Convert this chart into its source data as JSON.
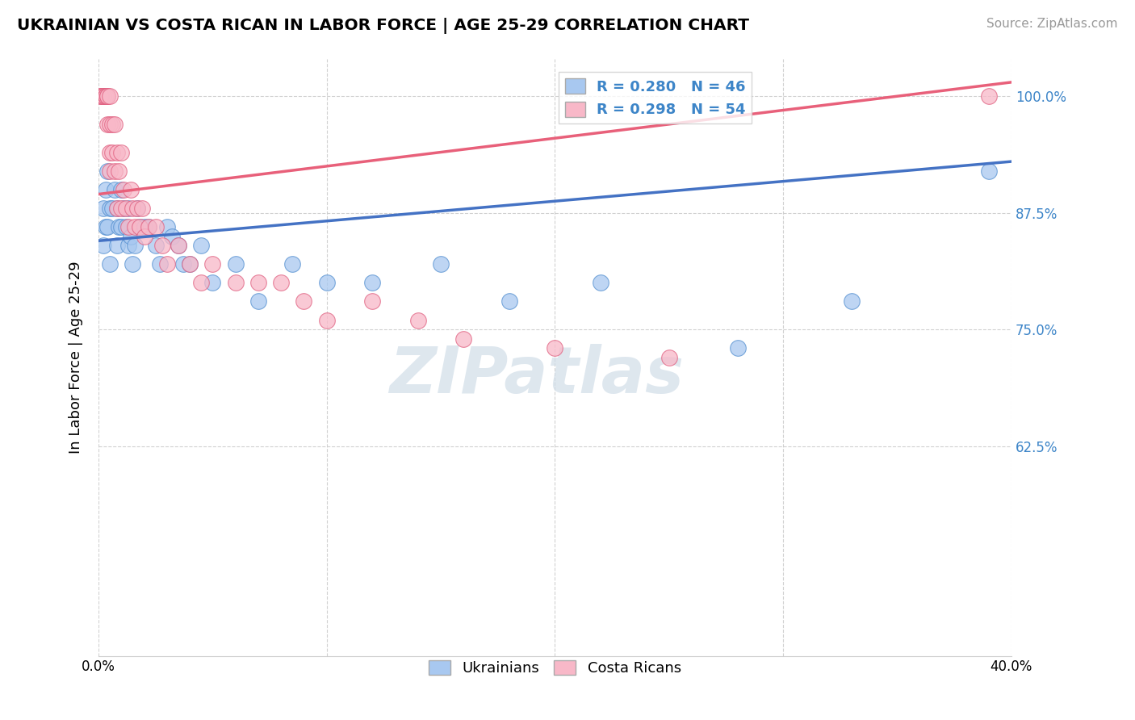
{
  "title": "UKRAINIAN VS COSTA RICAN IN LABOR FORCE | AGE 25-29 CORRELATION CHART",
  "source": "Source: ZipAtlas.com",
  "ylabel": "In Labor Force | Age 25-29",
  "xlim": [
    0.0,
    0.4
  ],
  "ylim": [
    0.4,
    1.04
  ],
  "yticks": [
    0.625,
    0.75,
    0.875,
    1.0
  ],
  "yticklabels": [
    "62.5%",
    "75.0%",
    "87.5%",
    "100.0%"
  ],
  "xtick_left_label": "0.0%",
  "xtick_right_label": "40.0%",
  "ukrainian_color": "#a8c8f0",
  "ukrainian_edge": "#5590d0",
  "costa_rican_color": "#f8b8c8",
  "costa_rican_edge": "#e06080",
  "uk_line_color": "#4472c4",
  "cr_line_color": "#e8607a",
  "ukrainian_R": 0.28,
  "ukrainian_N": 46,
  "costa_rican_R": 0.298,
  "costa_rican_N": 54,
  "watermark": "ZIPatlas",
  "legend_labels": [
    "Ukrainians",
    "Costa Ricans"
  ],
  "ukrainians_x": [
    0.002,
    0.002,
    0.003,
    0.003,
    0.004,
    0.004,
    0.005,
    0.005,
    0.006,
    0.007,
    0.008,
    0.008,
    0.009,
    0.01,
    0.01,
    0.011,
    0.012,
    0.013,
    0.013,
    0.014,
    0.015,
    0.016,
    0.017,
    0.018,
    0.02,
    0.022,
    0.025,
    0.027,
    0.03,
    0.032,
    0.035,
    0.037,
    0.04,
    0.045,
    0.05,
    0.06,
    0.07,
    0.085,
    0.1,
    0.12,
    0.15,
    0.18,
    0.22,
    0.28,
    0.33,
    0.39
  ],
  "ukrainians_y": [
    0.88,
    0.84,
    0.9,
    0.86,
    0.92,
    0.86,
    0.88,
    0.82,
    0.88,
    0.9,
    0.88,
    0.84,
    0.86,
    0.9,
    0.86,
    0.88,
    0.86,
    0.84,
    0.88,
    0.85,
    0.82,
    0.84,
    0.88,
    0.86,
    0.86,
    0.86,
    0.84,
    0.82,
    0.86,
    0.85,
    0.84,
    0.82,
    0.82,
    0.84,
    0.8,
    0.82,
    0.78,
    0.82,
    0.8,
    0.8,
    0.82,
    0.78,
    0.8,
    0.73,
    0.78,
    0.92
  ],
  "costa_ricans_x": [
    0.001,
    0.001,
    0.001,
    0.002,
    0.002,
    0.002,
    0.003,
    0.003,
    0.003,
    0.004,
    0.004,
    0.004,
    0.005,
    0.005,
    0.005,
    0.005,
    0.006,
    0.006,
    0.007,
    0.007,
    0.008,
    0.008,
    0.009,
    0.01,
    0.01,
    0.011,
    0.012,
    0.013,
    0.014,
    0.015,
    0.016,
    0.017,
    0.018,
    0.019,
    0.02,
    0.022,
    0.025,
    0.028,
    0.03,
    0.035,
    0.04,
    0.045,
    0.05,
    0.06,
    0.07,
    0.08,
    0.09,
    0.1,
    0.12,
    0.14,
    0.16,
    0.2,
    0.25,
    0.39
  ],
  "costa_ricans_y": [
    1.0,
    1.0,
    1.0,
    1.0,
    1.0,
    1.0,
    1.0,
    1.0,
    1.0,
    1.0,
    1.0,
    0.97,
    1.0,
    0.97,
    0.94,
    0.92,
    0.97,
    0.94,
    0.97,
    0.92,
    0.94,
    0.88,
    0.92,
    0.94,
    0.88,
    0.9,
    0.88,
    0.86,
    0.9,
    0.88,
    0.86,
    0.88,
    0.86,
    0.88,
    0.85,
    0.86,
    0.86,
    0.84,
    0.82,
    0.84,
    0.82,
    0.8,
    0.82,
    0.8,
    0.8,
    0.8,
    0.78,
    0.76,
    0.78,
    0.76,
    0.74,
    0.73,
    0.72,
    1.0
  ]
}
